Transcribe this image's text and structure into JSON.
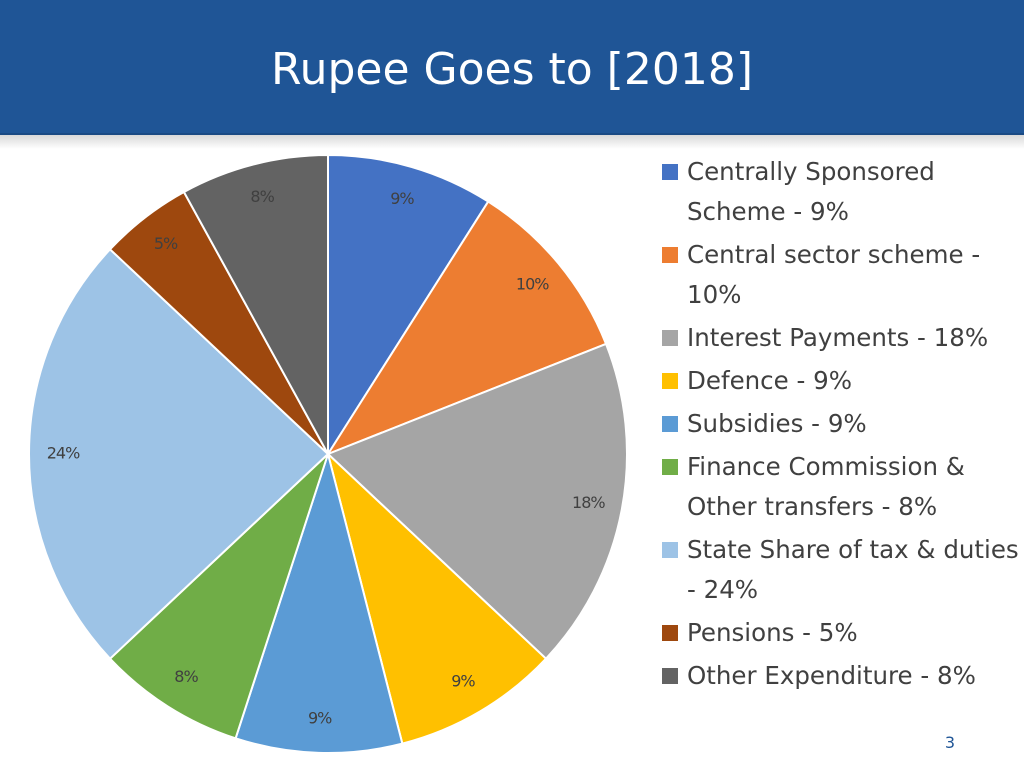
{
  "slide": {
    "title": "Rupee Goes to [2018]",
    "page_number": "3"
  },
  "colors": {
    "title_bar": "#1f5596",
    "text": "#404040",
    "slice_border": "#ffffff"
  },
  "chart_data": {
    "type": "pie",
    "title": "Rupee Goes to [2018]",
    "legend_position": "right",
    "slices": [
      {
        "legend": "Centrally Sponsored Scheme - 9%",
        "label": "9%",
        "value": 9,
        "color": "#4472c4"
      },
      {
        "legend": "Central sector scheme - 10%",
        "label": "10%",
        "value": 10,
        "color": "#ed7d31"
      },
      {
        "legend": "Interest Payments - 18%",
        "label": "18%",
        "value": 18,
        "color": "#a5a5a5"
      },
      {
        "legend": "Defence - 9%",
        "label": "9%",
        "value": 9,
        "color": "#ffc000"
      },
      {
        "legend": "Subsidies - 9%",
        "label": "9%",
        "value": 9,
        "color": "#5b9bd5"
      },
      {
        "legend": "Finance Commission & Other transfers - 8%",
        "label": "8%",
        "value": 8,
        "color": "#70ad47"
      },
      {
        "legend": "State Share of tax & duties - 24%",
        "label": "24%",
        "value": 24,
        "color": "#9dc3e6"
      },
      {
        "legend": "Pensions - 5%",
        "label": "5%",
        "value": 5,
        "color": "#9e480e"
      },
      {
        "legend": "Other Expenditure - 8%",
        "label": "8%",
        "value": 8,
        "color": "#636363"
      }
    ]
  }
}
